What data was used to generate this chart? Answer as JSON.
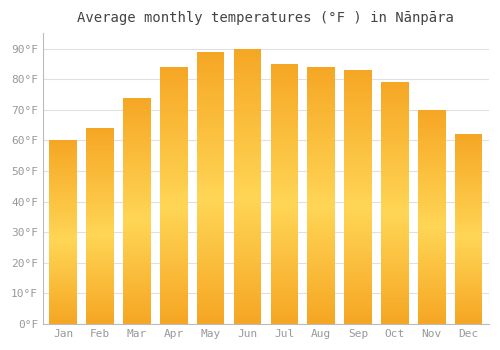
{
  "title": "Average monthly temperatures (°F ) in Nānpāra",
  "months": [
    "Jan",
    "Feb",
    "Mar",
    "Apr",
    "May",
    "Jun",
    "Jul",
    "Aug",
    "Sep",
    "Oct",
    "Nov",
    "Dec"
  ],
  "values": [
    60,
    64,
    74,
    84,
    89,
    90,
    85,
    84,
    83,
    79,
    70,
    62
  ],
  "bar_color_bottom": "#F5A623",
  "bar_color_mid": "#FFD04A",
  "bar_color_top": "#F5A623",
  "background_color": "#FFFFFF",
  "grid_color": "#E0E0E0",
  "tick_label_color": "#999999",
  "title_color": "#444444",
  "ylim": [
    0,
    95
  ],
  "yticks": [
    0,
    10,
    20,
    30,
    40,
    50,
    60,
    70,
    80,
    90
  ],
  "ytick_labels": [
    "0°F",
    "10°F",
    "20°F",
    "30°F",
    "40°F",
    "50°F",
    "60°F",
    "70°F",
    "80°F",
    "90°F"
  ],
  "title_fontsize": 10,
  "tick_fontsize": 8,
  "figsize": [
    5.0,
    3.5
  ],
  "dpi": 100
}
